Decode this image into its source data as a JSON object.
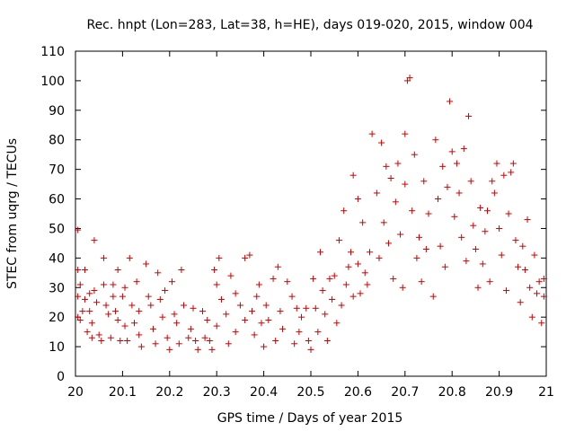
{
  "chart_data": {
    "type": "scatter",
    "title": "Rec. hnpt (Lon=283, Lat=38, h=HE), days 019-020, 2015, window 004",
    "xlabel": "GPS time / Days of year 2015",
    "ylabel": "STEC from uqrg / TECUs",
    "xlim": [
      20.0,
      21.0
    ],
    "ylim": [
      0,
      110
    ],
    "xticks": [
      "20",
      "20.1",
      "20.2",
      "20.3",
      "20.4",
      "20.5",
      "20.6",
      "20.7",
      "20.8",
      "20.9",
      "21"
    ],
    "yticks": [
      "0",
      "10",
      "20",
      "30",
      "40",
      "50",
      "60",
      "70",
      "80",
      "90",
      "100",
      "110"
    ],
    "grid": false,
    "marker": "+",
    "marker_color": "#cc0000",
    "series": [
      {
        "name": "STEC",
        "points": [
          [
            20.005,
            49.5
          ],
          [
            20.005,
            36
          ],
          [
            20.01,
            31
          ],
          [
            20.005,
            27
          ],
          [
            20.005,
            20
          ],
          [
            20.01,
            19
          ],
          [
            20.015,
            22
          ],
          [
            20.02,
            36
          ],
          [
            20.02,
            26
          ],
          [
            20.025,
            15
          ],
          [
            20.03,
            28
          ],
          [
            20.03,
            22
          ],
          [
            20.035,
            18
          ],
          [
            20.035,
            13
          ],
          [
            20.04,
            46
          ],
          [
            20.04,
            29
          ],
          [
            20.045,
            25
          ],
          [
            20.05,
            14
          ],
          [
            20.055,
            12
          ],
          [
            20.06,
            40
          ],
          [
            20.06,
            31
          ],
          [
            20.065,
            24
          ],
          [
            20.07,
            21
          ],
          [
            20.075,
            13
          ],
          [
            20.08,
            31
          ],
          [
            20.08,
            27
          ],
          [
            20.085,
            22
          ],
          [
            20.09,
            36
          ],
          [
            20.09,
            19
          ],
          [
            20.095,
            12
          ],
          [
            20.1,
            27
          ],
          [
            20.105,
            30
          ],
          [
            20.105,
            17
          ],
          [
            20.11,
            12
          ],
          [
            20.115,
            40
          ],
          [
            20.12,
            24
          ],
          [
            20.125,
            18
          ],
          [
            20.13,
            32
          ],
          [
            20.135,
            22
          ],
          [
            20.135,
            14
          ],
          [
            20.14,
            10
          ],
          [
            20.15,
            38
          ],
          [
            20.155,
            27
          ],
          [
            20.16,
            24
          ],
          [
            20.165,
            16
          ],
          [
            20.17,
            11
          ],
          [
            20.175,
            35
          ],
          [
            20.18,
            26
          ],
          [
            20.185,
            20
          ],
          [
            20.19,
            29
          ],
          [
            20.195,
            13
          ],
          [
            20.2,
            9
          ],
          [
            20.205,
            32
          ],
          [
            20.21,
            21
          ],
          [
            20.215,
            18
          ],
          [
            20.22,
            11
          ],
          [
            20.225,
            36
          ],
          [
            20.23,
            24
          ],
          [
            20.24,
            13
          ],
          [
            20.245,
            16
          ],
          [
            20.25,
            23
          ],
          [
            20.255,
            12
          ],
          [
            20.26,
            9
          ],
          [
            20.27,
            22
          ],
          [
            20.275,
            13
          ],
          [
            20.28,
            19
          ],
          [
            20.285,
            12
          ],
          [
            20.29,
            9
          ],
          [
            20.295,
            36
          ],
          [
            20.3,
            31
          ],
          [
            20.3,
            17
          ],
          [
            20.305,
            40
          ],
          [
            20.31,
            26
          ],
          [
            20.32,
            21
          ],
          [
            20.325,
            11
          ],
          [
            20.33,
            34
          ],
          [
            20.34,
            28
          ],
          [
            20.34,
            15
          ],
          [
            20.35,
            24
          ],
          [
            20.36,
            40
          ],
          [
            20.36,
            19
          ],
          [
            20.37,
            41
          ],
          [
            20.375,
            22
          ],
          [
            20.38,
            14
          ],
          [
            20.385,
            27
          ],
          [
            20.39,
            31
          ],
          [
            20.395,
            18
          ],
          [
            20.4,
            10
          ],
          [
            20.405,
            24
          ],
          [
            20.41,
            19
          ],
          [
            20.42,
            33
          ],
          [
            20.425,
            12
          ],
          [
            20.43,
            37
          ],
          [
            20.435,
            22
          ],
          [
            20.44,
            16
          ],
          [
            20.45,
            32
          ],
          [
            20.46,
            27
          ],
          [
            20.465,
            11
          ],
          [
            20.47,
            23
          ],
          [
            20.475,
            15
          ],
          [
            20.48,
            20
          ],
          [
            20.49,
            23
          ],
          [
            20.495,
            12
          ],
          [
            20.5,
            9
          ],
          [
            20.505,
            33
          ],
          [
            20.51,
            23
          ],
          [
            20.515,
            15
          ],
          [
            20.52,
            42
          ],
          [
            20.525,
            29
          ],
          [
            20.53,
            21
          ],
          [
            20.535,
            12
          ],
          [
            20.54,
            33
          ],
          [
            20.545,
            26
          ],
          [
            20.55,
            34
          ],
          [
            20.555,
            18
          ],
          [
            20.56,
            46
          ],
          [
            20.565,
            24
          ],
          [
            20.57,
            56
          ],
          [
            20.575,
            31
          ],
          [
            20.58,
            37
          ],
          [
            20.585,
            42
          ],
          [
            20.59,
            68
          ],
          [
            20.59,
            27
          ],
          [
            20.6,
            60
          ],
          [
            20.6,
            38
          ],
          [
            20.605,
            28
          ],
          [
            20.61,
            52
          ],
          [
            20.615,
            35
          ],
          [
            20.62,
            31
          ],
          [
            20.625,
            42
          ],
          [
            20.63,
            82
          ],
          [
            20.64,
            62
          ],
          [
            20.645,
            40
          ],
          [
            20.65,
            79
          ],
          [
            20.655,
            52
          ],
          [
            20.66,
            71
          ],
          [
            20.665,
            45
          ],
          [
            20.67,
            67
          ],
          [
            20.675,
            33
          ],
          [
            20.68,
            59
          ],
          [
            20.685,
            72
          ],
          [
            20.69,
            48
          ],
          [
            20.695,
            30
          ],
          [
            20.7,
            82
          ],
          [
            20.7,
            65
          ],
          [
            20.705,
            100
          ],
          [
            20.71,
            101
          ],
          [
            20.715,
            56
          ],
          [
            20.72,
            75
          ],
          [
            20.725,
            40
          ],
          [
            20.73,
            47
          ],
          [
            20.735,
            32
          ],
          [
            20.74,
            66
          ],
          [
            20.745,
            43
          ],
          [
            20.75,
            55
          ],
          [
            20.76,
            27
          ],
          [
            20.765,
            80
          ],
          [
            20.77,
            60
          ],
          [
            20.775,
            44
          ],
          [
            20.78,
            71
          ],
          [
            20.785,
            37
          ],
          [
            20.79,
            64
          ],
          [
            20.795,
            93
          ],
          [
            20.8,
            76
          ],
          [
            20.805,
            54
          ],
          [
            20.81,
            72
          ],
          [
            20.815,
            62
          ],
          [
            20.82,
            47
          ],
          [
            20.825,
            77
          ],
          [
            20.83,
            39
          ],
          [
            20.835,
            88
          ],
          [
            20.84,
            66
          ],
          [
            20.845,
            51
          ],
          [
            20.85,
            43
          ],
          [
            20.855,
            30
          ],
          [
            20.86,
            57
          ],
          [
            20.865,
            38
          ],
          [
            20.87,
            49
          ],
          [
            20.875,
            56
          ],
          [
            20.88,
            32
          ],
          [
            20.885,
            66
          ],
          [
            20.89,
            62
          ],
          [
            20.895,
            72
          ],
          [
            20.9,
            50
          ],
          [
            20.905,
            41
          ],
          [
            20.91,
            68
          ],
          [
            20.915,
            29
          ],
          [
            20.92,
            55
          ],
          [
            20.925,
            69
          ],
          [
            20.93,
            72
          ],
          [
            20.935,
            46
          ],
          [
            20.94,
            37
          ],
          [
            20.945,
            25
          ],
          [
            20.95,
            44
          ],
          [
            20.955,
            36
          ],
          [
            20.96,
            53
          ],
          [
            20.965,
            30
          ],
          [
            20.97,
            20
          ],
          [
            20.975,
            41
          ],
          [
            20.98,
            28
          ],
          [
            20.985,
            32
          ],
          [
            20.99,
            18
          ],
          [
            20.995,
            27
          ],
          [
            20.995,
            33
          ]
        ]
      }
    ]
  }
}
